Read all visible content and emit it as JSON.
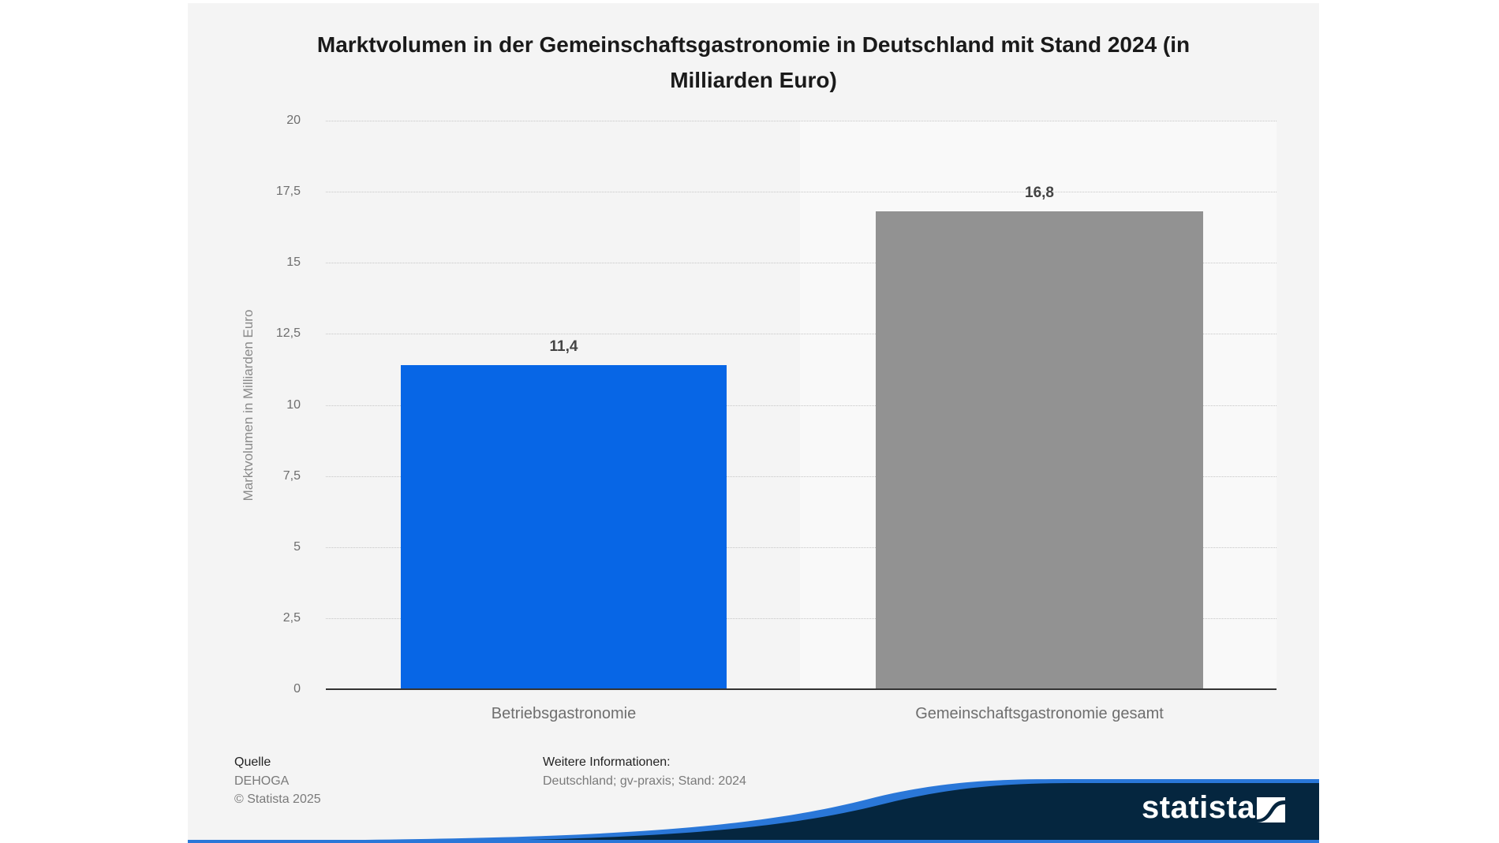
{
  "chart_data": {
    "type": "bar",
    "title": "Marktvolumen in der Gemeinschaftsgastronomie in Deutschland mit Stand 2024 (in Milliarden Euro)",
    "categories": [
      "Betriebsgastronomie",
      "Gemeinschaftsgastronomie gesamt"
    ],
    "values": [
      11.4,
      16.8
    ],
    "value_labels": [
      "11,4",
      "16,8"
    ],
    "xlabel": "",
    "ylabel": "Marktvolumen in Milliarden Euro",
    "ylim": [
      0,
      20
    ],
    "yticks": [
      "0",
      "2,5",
      "5",
      "7,5",
      "10",
      "12,5",
      "15",
      "17,5",
      "20"
    ],
    "grid": true,
    "legend": "none",
    "colors": [
      "#0766e6",
      "#929292"
    ]
  },
  "title_line1": "Marktvolumen in der Gemeinschaftsgastronomie in Deutschland mit Stand 2024 (in",
  "title_line2": "Milliarden Euro)",
  "source": {
    "heading": "Quelle",
    "name": "DEHOGA",
    "copyright": "© Statista 2025"
  },
  "info": {
    "heading": "Weitere Informationen:",
    "text": "Deutschland; gv-praxis; Stand: 2024"
  },
  "branding": {
    "logo_text": "statista",
    "logo_icon": "statista-logo-icon",
    "footer_dark": "#05263f",
    "footer_blue": "#2a77d8"
  }
}
